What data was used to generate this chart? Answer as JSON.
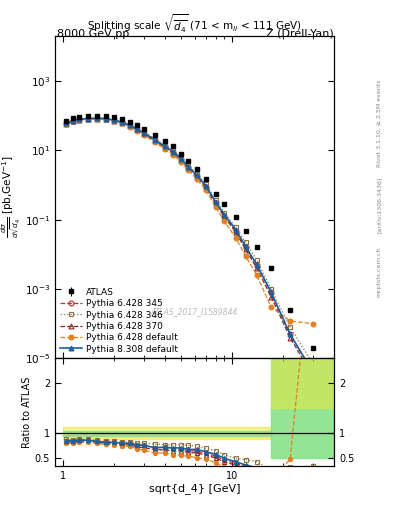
{
  "title_left": "8000 GeV pp",
  "title_right": "Z (Drell-Yan)",
  "plot_title": "Splitting scale $\\sqrt{\\overline{d_4}}$ (71 < m$_{ll}$ < 111 GeV)",
  "ylabel_ratio": "Ratio to ATLAS",
  "xlabel": "sqrt{d_4} [GeV]",
  "watermark": "ATLAS_2017_I1589844",
  "right_label1": "Rivet 3.1.10, ≥ 2.5M events",
  "right_label2": "[arXiv:1306.3436]",
  "right_label3": "mcplots.cern.ch",
  "ylim_main": [
    1e-05,
    20000.0
  ],
  "xlim": [
    0.9,
    40
  ],
  "atlas_x": [
    1.05,
    1.15,
    1.25,
    1.4,
    1.6,
    1.8,
    2.0,
    2.25,
    2.5,
    2.75,
    3.0,
    3.5,
    4.0,
    4.5,
    5.0,
    5.5,
    6.2,
    7.0,
    8.0,
    9.0,
    10.5,
    12.0,
    14.0,
    17.0,
    22.0,
    30.0
  ],
  "atlas_y": [
    70,
    85,
    90,
    95,
    100,
    100,
    90,
    80,
    65,
    52,
    42,
    28,
    18,
    13,
    8.0,
    5.0,
    2.8,
    1.5,
    0.55,
    0.28,
    0.12,
    0.046,
    0.016,
    0.004,
    0.00025,
    2e-05
  ],
  "atlas_yerrp": [
    5,
    5,
    5,
    5,
    5,
    5,
    5,
    5,
    4,
    4,
    3,
    2,
    1.5,
    1,
    0.6,
    0.4,
    0.25,
    0.13,
    0.05,
    0.025,
    0.01,
    0.004,
    0.002,
    0.0004,
    3e-05,
    3e-06
  ],
  "atlas_yerrm": [
    5,
    5,
    5,
    5,
    5,
    5,
    5,
    5,
    4,
    4,
    3,
    2,
    1.5,
    1,
    0.6,
    0.4,
    0.25,
    0.13,
    0.05,
    0.025,
    0.01,
    0.004,
    0.002,
    0.0004,
    3e-05,
    3e-06
  ],
  "p6_345_x": [
    1.05,
    1.15,
    1.25,
    1.4,
    1.6,
    1.8,
    2.0,
    2.25,
    2.5,
    2.75,
    3.0,
    3.5,
    4.0,
    4.5,
    5.0,
    5.5,
    6.2,
    7.0,
    8.0,
    9.0,
    10.5,
    12.0,
    14.0,
    17.0,
    22.0,
    30.0
  ],
  "p6_345_y": [
    60,
    72,
    78,
    82,
    84,
    82,
    74,
    64,
    52,
    40,
    32,
    20,
    13,
    9.0,
    5.5,
    3.3,
    1.8,
    0.9,
    0.3,
    0.13,
    0.048,
    0.016,
    0.005,
    0.0008,
    5e-05,
    4e-06
  ],
  "p6_346_x": [
    1.05,
    1.15,
    1.25,
    1.4,
    1.6,
    1.8,
    2.0,
    2.25,
    2.5,
    2.75,
    3.0,
    3.5,
    4.0,
    4.5,
    5.0,
    5.5,
    6.2,
    7.0,
    8.0,
    9.0,
    10.5,
    12.0,
    14.0,
    17.0,
    22.0,
    30.0
  ],
  "p6_346_y": [
    62,
    74,
    80,
    84,
    86,
    84,
    76,
    66,
    54,
    42,
    34,
    22,
    14,
    10,
    6.2,
    3.8,
    2.1,
    1.05,
    0.36,
    0.16,
    0.06,
    0.022,
    0.007,
    0.001,
    8e-05,
    7e-06
  ],
  "p6_370_x": [
    1.05,
    1.15,
    1.25,
    1.4,
    1.6,
    1.8,
    2.0,
    2.25,
    2.5,
    2.75,
    3.0,
    3.5,
    4.0,
    4.5,
    5.0,
    5.5,
    6.2,
    7.0,
    8.0,
    9.0,
    10.5,
    12.0,
    14.0,
    17.0,
    22.0,
    30.0
  ],
  "p6_370_y": [
    58,
    70,
    76,
    80,
    82,
    80,
    72,
    62,
    50,
    38,
    30,
    19,
    12,
    8.5,
    5.2,
    3.1,
    1.7,
    0.85,
    0.28,
    0.12,
    0.044,
    0.014,
    0.004,
    0.0006,
    4e-05,
    3e-06
  ],
  "p6_def_x": [
    1.05,
    1.15,
    1.25,
    1.4,
    1.6,
    1.8,
    2.0,
    2.25,
    2.5,
    2.75,
    3.0,
    3.5,
    4.0,
    4.5,
    5.0,
    5.5,
    6.2,
    7.0,
    8.0,
    9.0,
    10.5,
    12.0,
    14.0,
    17.0,
    22.0,
    30.0
  ],
  "p6_def_y": [
    56,
    68,
    74,
    78,
    80,
    78,
    70,
    60,
    48,
    36,
    28,
    17,
    11,
    7.5,
    4.5,
    2.7,
    1.45,
    0.72,
    0.23,
    0.09,
    0.03,
    0.009,
    0.0025,
    0.0003,
    0.00012,
    0.0001
  ],
  "p8_def_x": [
    1.05,
    1.15,
    1.25,
    1.4,
    1.6,
    1.8,
    2.0,
    2.25,
    2.5,
    2.75,
    3.0,
    3.5,
    4.0,
    4.5,
    5.0,
    5.5,
    6.2,
    7.0,
    8.0,
    9.0,
    10.5,
    12.0,
    14.0,
    17.0,
    22.0,
    30.0
  ],
  "p8_def_y": [
    60,
    72,
    78,
    82,
    84,
    82,
    74,
    64,
    52,
    40,
    32,
    20,
    13,
    9.2,
    5.7,
    3.4,
    1.9,
    0.95,
    0.32,
    0.14,
    0.052,
    0.017,
    0.005,
    0.0008,
    5e-05,
    4e-06
  ],
  "color_p6_345": "#b03030",
  "color_p6_346": "#8B7040",
  "color_p6_370": "#8B2020",
  "color_p6_def": "#e08020",
  "color_p8_def": "#1a5fa0",
  "ratio_ylim": [
    0.35,
    2.5
  ],
  "ratio_yticks": [
    0.5,
    1.0,
    2.0
  ],
  "band_yellow_x1": 1.0,
  "band_yellow_x2": 17.0,
  "band_yellow_ylo": 0.88,
  "band_yellow_yhi": 1.12,
  "band_green_lo_x1": 1.0,
  "band_green_lo_x2": 17.0,
  "band_green_lo_ylo": 0.95,
  "band_green_lo_yhi": 1.05,
  "band_green_hi_x1": 17.0,
  "band_green_hi_x2": 40.0,
  "band_green_hi_ylo": 0.5,
  "band_green_hi_yhi": 2.5,
  "band_yellow_hi_x1": 17.0,
  "band_yellow_hi_x2": 40.0,
  "band_yellow_hi_ylo": 1.5,
  "band_yellow_hi_yhi": 2.5
}
